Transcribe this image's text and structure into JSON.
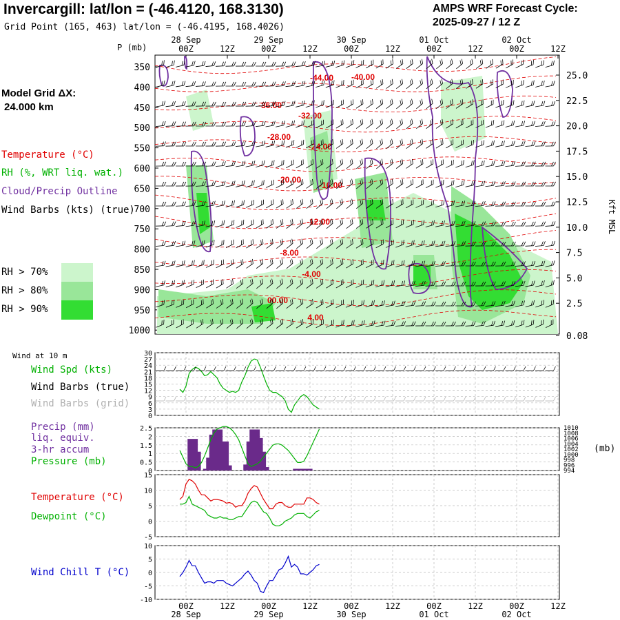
{
  "header": {
    "title": "Invercargill:  lat/lon = (-46.4120, 168.3130)",
    "subtitle": "Grid Point (165, 463) lat/lon = (-46.4195, 168.4026)",
    "cycle_label": "AMPS WRF Forecast Cycle:",
    "cycle_value": "2025-09-27 / 12  Z",
    "grid_label": "Model Grid ΔX:",
    "grid_value": "24.000 km"
  },
  "legend": {
    "temperature": "Temperature (°C)",
    "rh": "RH (%, WRT liq. wat.)",
    "cloud": "Cloud/Precip Outline",
    "barbs": "Wind Barbs (kts) (true)",
    "rh70": "RH > 70%",
    "rh80": "RH > 80%",
    "rh90": "RH > 90%",
    "wind10": "Wind at 10 m",
    "wind_spd": "Wind Spd (kts)",
    "barbs_true": "Wind Barbs (true)",
    "barbs_grid": "Wind Barbs (grid)",
    "precip1": "Precip (mm)",
    "precip2": "liq. equiv.",
    "precip3": "3-hr accum",
    "pressure": "Pressure (mb)",
    "temp2": "Temperature (°C)",
    "dew": "Dewpoint (°C)",
    "chill": "Wind Chill T (°C)"
  },
  "colors": {
    "temperature": "#e00000",
    "rh": "#00b000",
    "cloud": "#7030a0",
    "barbs_grid": "#b0b0b0",
    "rh70": "#ccf5cc",
    "rh80": "#99e699",
    "rh90": "#33dd33",
    "windchill": "#0000cc"
  },
  "chart_data": {
    "type": "line",
    "x_time_labels": [
      "00Z",
      "12Z",
      "00Z",
      "12Z",
      "00Z",
      "12Z",
      "00Z",
      "12Z",
      "00Z",
      "12Z"
    ],
    "date_labels": [
      "28 Sep",
      "29 Sep",
      "30 Sep",
      "01 Oct",
      "02 Oct"
    ],
    "pressure_axis": {
      "label": "P (mb)",
      "ticks": [
        "350",
        "400",
        "450",
        "500",
        "550",
        "600",
        "650",
        "700",
        "750",
        "800",
        "850",
        "900",
        "950",
        "1000"
      ]
    },
    "height_axis": {
      "label": "Kft MSL",
      "ticks": [
        "25.0",
        "22.5",
        "20.0",
        "17.5",
        "15.0",
        "12.5",
        "10.0",
        "7.5",
        "5.0",
        "2.5",
        "0.08"
      ]
    },
    "isotherm_labels": [
      "-44.00",
      "-40.00",
      "-36.00",
      "-32.00",
      "-28.00",
      "-24.00",
      "-20.00",
      "-16.00",
      "-12.00",
      "-8.00",
      "-4.00",
      "00.00",
      "4.00"
    ],
    "wind_panel": {
      "yticks": [
        "30",
        "27",
        "24",
        "21",
        "18",
        "15",
        "12",
        "9",
        "6",
        "3",
        "0"
      ],
      "ylim": [
        0,
        30
      ],
      "wind_speed": [
        12.5,
        11,
        14,
        20,
        22,
        23,
        22.5,
        21,
        19,
        19.5,
        21,
        19.5,
        18,
        15,
        13,
        12,
        11,
        11.5,
        11,
        12,
        16,
        19,
        23,
        26,
        27,
        26.5,
        23,
        19,
        15,
        12,
        11,
        11,
        10,
        9,
        7,
        3,
        1.5,
        5,
        7,
        9,
        10,
        9,
        7,
        5,
        4,
        3
      ]
    },
    "precip_panel": {
      "yticks": [
        "2.5",
        "2",
        "1.5",
        "1",
        "0.5",
        "0"
      ],
      "ylim": [
        0,
        2.5
      ],
      "pressure_ticks": [
        "1010",
        "1008",
        "1006",
        "1004",
        "1002",
        "1000",
        "998",
        "996",
        "994"
      ],
      "pressure_ylim": [
        994,
        1010
      ],
      "precip_3hr": [
        0,
        0,
        0,
        1.85,
        1.1,
        0,
        0,
        0,
        0.1,
        0.75,
        2.1,
        2.4,
        0.75,
        1.7,
        0.3,
        0,
        0,
        0,
        0,
        0,
        0,
        0.35,
        1.7,
        2.4,
        1.9,
        1.1,
        0.2,
        0,
        0,
        0,
        0,
        0,
        0,
        0,
        0,
        0,
        0,
        0.1,
        0,
        0,
        0.1,
        0,
        0,
        0,
        0,
        0
      ],
      "pressure": [
        1001.5,
        999,
        996.5,
        995.5,
        995.5,
        995,
        995.5,
        997,
        999.5,
        1002.5,
        1005.5,
        1008,
        1009.5,
        1010,
        1010.5,
        1010.5,
        1010,
        1009,
        1007.5,
        1005.5,
        1002.5,
        999.5,
        996.5,
        995.5,
        996,
        996.5,
        997.5,
        999,
        1000.5,
        1002,
        1003.5,
        1004,
        1004,
        1003.5,
        1002.5,
        1001.5,
        1000,
        998.5,
        997,
        997,
        997.5,
        999.5,
        1002,
        1004.5,
        1007,
        1009.5
      ]
    },
    "temp_panel": {
      "yticks": [
        "15",
        "10",
        "5",
        "0",
        "-5"
      ],
      "ylim": [
        -5,
        15
      ],
      "temperature": [
        7,
        8,
        12,
        13.5,
        13,
        12,
        10,
        8.5,
        8.5,
        7.5,
        6.5,
        7,
        7,
        6.8,
        6.5,
        5.8,
        6,
        5.6,
        4.5,
        5,
        5,
        6.5,
        9,
        10.5,
        11.5,
        11,
        9,
        7,
        5.5,
        4,
        4,
        5.5,
        6,
        6,
        5,
        4.5,
        4.5,
        5.5,
        5.5,
        5.5,
        5.5,
        7.5,
        7.5,
        7,
        6,
        5.5
      ],
      "dewpoint": [
        5.5,
        5.5,
        6,
        8,
        5.5,
        5,
        4.5,
        4,
        3.5,
        2,
        1.5,
        1,
        1,
        1.5,
        1,
        1,
        0.5,
        0.5,
        1,
        1.5,
        1.5,
        3,
        4.5,
        6,
        6.5,
        6,
        4.5,
        3,
        2.5,
        1,
        -1,
        -1.5,
        -1.5,
        -1,
        0,
        0.5,
        1,
        2,
        2.5,
        2.5,
        2.5,
        1.5,
        1,
        2,
        3,
        3.5
      ]
    },
    "chill_panel": {
      "yticks": [
        "10",
        "5",
        "0",
        "-5",
        "-10"
      ],
      "ylim": [
        -10,
        10
      ],
      "wind_chill": [
        -1.5,
        0,
        2,
        4.5,
        2.5,
        2.5,
        0,
        -2,
        -4,
        -3.5,
        -3.5,
        -4,
        -3,
        -3,
        -3,
        -4,
        -4.5,
        -5,
        -4,
        -3,
        -2,
        -0.5,
        0.5,
        -1,
        -3,
        -4,
        -7,
        -7.5,
        -5,
        -3,
        -3,
        -1,
        1,
        1.5,
        3.5,
        6,
        2,
        3,
        2,
        -0.5,
        -0.5,
        -1,
        0,
        1,
        2.5,
        3
      ]
    }
  }
}
